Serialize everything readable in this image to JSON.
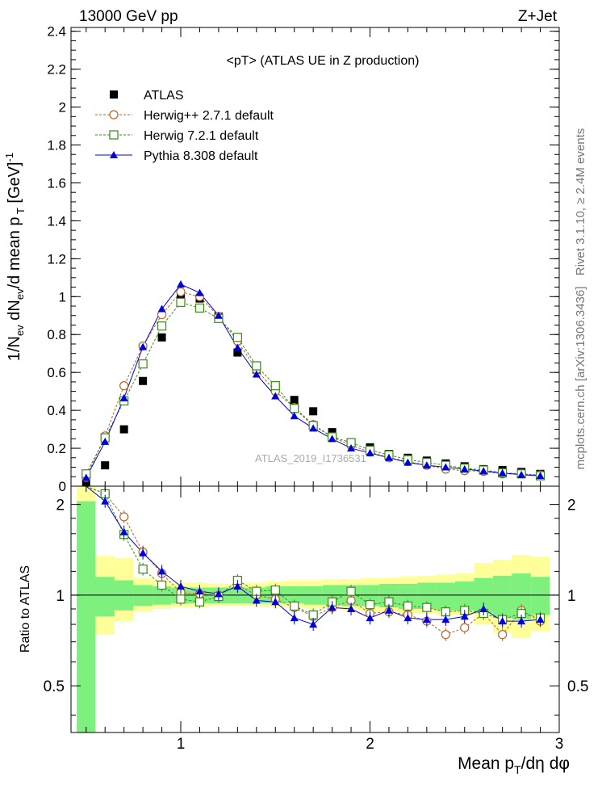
{
  "header": {
    "energy": "13000 GeV pp",
    "process": "Z+Jet"
  },
  "side_labels": {
    "rivet": "Rivet 3.1.10, ≥ 2.4M events",
    "mcplots": "mcplots.cern.ch [arXiv:1306.3436]"
  },
  "analysis_id": "ATLAS_2019_I1736531",
  "colors": {
    "data": "#000000",
    "herwigpp": "#b8642a",
    "herwig7": "#3a8a14",
    "pythia": "#0000dd",
    "band_inner": "#7df07d",
    "band_outer": "#ffff99"
  },
  "chart_data": [
    {
      "type": "scatter",
      "panel": "main",
      "title": "<pT> (ATLAS UE in Z production)",
      "xlabel": "Mean pT/dη dφ",
      "ylabel": "1/Nev dNev/d mean pT [GeV]-1",
      "xlim": [
        0.42,
        3.0
      ],
      "ylim": [
        0,
        2.42
      ],
      "yticks": [
        "0",
        "0.2",
        "0.4",
        "0.6",
        "0.8",
        "1",
        "1.2",
        "1.4",
        "1.6",
        "1.8",
        "2",
        "2.2",
        "2.4"
      ],
      "legend_position": "top-left",
      "x": [
        0.5,
        0.6,
        0.7,
        0.8,
        0.9,
        1.0,
        1.1,
        1.2,
        1.3,
        1.4,
        1.5,
        1.6,
        1.7,
        1.8,
        1.9,
        2.0,
        2.1,
        2.2,
        2.3,
        2.4,
        2.5,
        2.6,
        2.7,
        2.8,
        2.9
      ],
      "series": [
        {
          "name": "ATLAS",
          "marker": "square-filled",
          "values": [
            0.02,
            0.11,
            0.3,
            0.555,
            0.785,
            1.0,
            0.99,
            0.895,
            0.705,
            0.615,
            0.515,
            0.455,
            0.395,
            0.285,
            0.225,
            0.205,
            0.17,
            0.15,
            0.135,
            0.12,
            0.105,
            0.09,
            0.085,
            0.075,
            0.065
          ]
        },
        {
          "name": "Herwig++ 2.7.1 default",
          "marker": "circle-open",
          "values": [
            0.045,
            0.265,
            0.53,
            0.74,
            0.905,
            1.025,
            1.0,
            0.895,
            0.765,
            0.615,
            0.5,
            0.415,
            0.325,
            0.26,
            0.215,
            0.18,
            0.15,
            0.13,
            0.11,
            0.09,
            0.082,
            0.078,
            0.065,
            0.065,
            0.06
          ]
        },
        {
          "name": "Herwig 7.2.1 default",
          "marker": "square-open",
          "values": [
            0.065,
            0.255,
            0.45,
            0.645,
            0.845,
            0.97,
            0.94,
            0.885,
            0.785,
            0.635,
            0.53,
            0.41,
            0.32,
            0.26,
            0.23,
            0.19,
            0.165,
            0.14,
            0.125,
            0.11,
            0.095,
            0.085,
            0.07,
            0.065,
            0.055
          ]
        },
        {
          "name": "Pythia 8.308 default",
          "marker": "triangle-filled",
          "values": [
            0.045,
            0.235,
            0.465,
            0.735,
            0.935,
            1.065,
            1.02,
            0.9,
            0.73,
            0.59,
            0.475,
            0.37,
            0.305,
            0.25,
            0.2,
            0.175,
            0.15,
            0.125,
            0.11,
            0.1,
            0.09,
            0.08,
            0.07,
            0.06,
            0.055
          ]
        }
      ]
    },
    {
      "type": "scatter",
      "panel": "ratio",
      "ylabel": "Ratio to ATLAS",
      "xlabel": "Mean pT/dη dφ",
      "xlim": [
        0.42,
        3.0
      ],
      "ylim": [
        0.35,
        2.3
      ],
      "xticks": [
        "1",
        "2",
        "3"
      ],
      "yticks": [
        "0.5",
        "1",
        "2"
      ],
      "reference_line": 1,
      "x": [
        0.5,
        0.6,
        0.7,
        0.8,
        0.9,
        1.0,
        1.1,
        1.2,
        1.3,
        1.4,
        1.5,
        1.6,
        1.7,
        1.8,
        1.9,
        2.0,
        2.1,
        2.2,
        2.3,
        2.4,
        2.5,
        2.6,
        2.7,
        2.8,
        2.9
      ],
      "uncertainty_band": {
        "outer_low": [
          0.35,
          0.74,
          0.82,
          0.88,
          0.9,
          0.91,
          0.91,
          0.92,
          0.92,
          0.92,
          0.91,
          0.91,
          0.9,
          0.9,
          0.89,
          0.88,
          0.88,
          0.87,
          0.87,
          0.86,
          0.86,
          0.8,
          0.75,
          0.72,
          0.76
        ],
        "outer_high": [
          2.3,
          1.35,
          1.33,
          1.14,
          1.12,
          1.1,
          1.1,
          1.09,
          1.09,
          1.1,
          1.11,
          1.12,
          1.12,
          1.13,
          1.13,
          1.14,
          1.14,
          1.15,
          1.16,
          1.17,
          1.18,
          1.28,
          1.31,
          1.36,
          1.34
        ],
        "inner_low": [
          0.35,
          0.85,
          0.89,
          0.92,
          0.93,
          0.94,
          0.94,
          0.94,
          0.94,
          0.94,
          0.94,
          0.94,
          0.93,
          0.93,
          0.92,
          0.92,
          0.91,
          0.9,
          0.9,
          0.89,
          0.89,
          0.87,
          0.84,
          0.83,
          0.86
        ],
        "inner_high": [
          2.05,
          1.15,
          1.12,
          1.08,
          1.07,
          1.06,
          1.06,
          1.06,
          1.06,
          1.06,
          1.07,
          1.07,
          1.07,
          1.08,
          1.08,
          1.08,
          1.09,
          1.09,
          1.1,
          1.1,
          1.11,
          1.14,
          1.16,
          1.18,
          1.15
        ]
      },
      "series": [
        {
          "name": "Herwig++ 2.7.1 default",
          "marker": "circle-open",
          "values": [
            2.3,
            2.17,
            1.82,
            1.39,
            1.18,
            1.02,
            1.01,
            1.0,
            1.08,
            1.0,
            0.97,
            0.91,
            0.85,
            0.91,
            0.96,
            0.87,
            0.88,
            0.86,
            0.82,
            0.74,
            0.78,
            0.87,
            0.74,
            0.89,
            0.82
          ]
        },
        {
          "name": "Herwig 7.2.1 default",
          "marker": "square-open",
          "values": [
            2.3,
            2.17,
            1.59,
            1.22,
            1.08,
            0.97,
            0.95,
            0.99,
            1.12,
            1.03,
            1.04,
            0.92,
            0.86,
            0.95,
            1.03,
            0.93,
            0.95,
            0.92,
            0.91,
            0.88,
            0.89,
            0.87,
            0.83,
            0.87,
            0.84
          ]
        },
        {
          "name": "Pythia 8.308 default",
          "marker": "triangle-filled",
          "values": [
            2.3,
            2.05,
            1.62,
            1.38,
            1.2,
            1.07,
            1.03,
            1.01,
            1.07,
            0.96,
            0.95,
            0.84,
            0.8,
            0.91,
            0.9,
            0.84,
            0.89,
            0.84,
            0.83,
            0.83,
            0.85,
            0.9,
            0.82,
            0.82,
            0.83
          ]
        }
      ]
    }
  ]
}
